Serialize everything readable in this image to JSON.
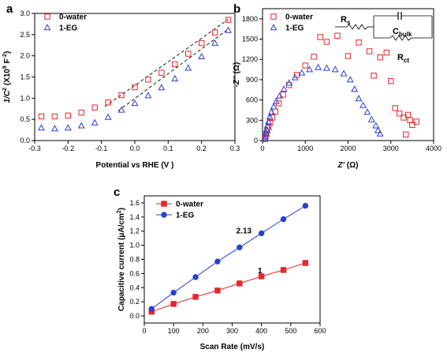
{
  "colors": {
    "red": "#e8262a",
    "blue": "#2b3fd6",
    "black": "#111111"
  },
  "chart_data": [
    {
      "panel": "a",
      "type": "scatter",
      "xlabel": "Potential vs RHE (V )",
      "ylabel_main": "1/C",
      "ylabel_sup": "2",
      "ylabel_unit": " (X10",
      "ylabel_unit_sup": "9",
      "ylabel_tail": " F",
      "ylabel_tail_sup": "-2",
      "ylabel_close": ")",
      "xlim": [
        -0.3,
        0.3
      ],
      "ylim": [
        0.0,
        3.0
      ],
      "xticks": [
        -0.3,
        -0.2,
        -0.1,
        0.0,
        0.1,
        0.2,
        0.3
      ],
      "xtick_labels": [
        "-0.3",
        "-0.2",
        "-0.1",
        "0.0",
        "0.1",
        "0.2",
        "0.3"
      ],
      "yticks": [
        0.0,
        0.5,
        1.0,
        1.5,
        2.0,
        2.5,
        3.0
      ],
      "ytick_labels": [
        "0.0",
        "0.5",
        "1.0",
        "1.5",
        "2.0",
        "2.5",
        "3.0"
      ],
      "series": [
        {
          "name": "0-water",
          "marker": "square",
          "x": [
            -0.28,
            -0.24,
            -0.2,
            -0.16,
            -0.12,
            -0.08,
            -0.04,
            0.0,
            0.04,
            0.08,
            0.12,
            0.16,
            0.2,
            0.24,
            0.28
          ],
          "y": [
            0.57,
            0.57,
            0.59,
            0.66,
            0.78,
            0.9,
            1.07,
            1.26,
            1.44,
            1.6,
            1.8,
            2.05,
            2.3,
            2.55,
            2.85
          ],
          "fit": [
            [
              -0.09,
              0.8
            ],
            [
              0.28,
              2.86
            ]
          ]
        },
        {
          "name": "1-EG",
          "marker": "triangle",
          "x": [
            -0.28,
            -0.24,
            -0.2,
            -0.16,
            -0.12,
            -0.08,
            -0.04,
            0.0,
            0.04,
            0.08,
            0.12,
            0.16,
            0.2,
            0.24,
            0.28
          ],
          "y": [
            0.3,
            0.28,
            0.3,
            0.35,
            0.42,
            0.55,
            0.72,
            0.88,
            1.06,
            1.25,
            1.46,
            1.71,
            1.98,
            2.3,
            2.6
          ],
          "fit": [
            [
              -0.05,
              0.7
            ],
            [
              0.28,
              2.63
            ]
          ]
        }
      ]
    },
    {
      "panel": "b",
      "type": "scatter",
      "xlabel_main": "Z'",
      "xlabel_unit": " (Ω)",
      "ylabel_main": "-Z''",
      "ylabel_unit": " (Ω)",
      "xlim": [
        0,
        4000
      ],
      "ylim": [
        0,
        1950
      ],
      "xticks": [
        0,
        1000,
        2000,
        3000,
        4000
      ],
      "xtick_labels": [
        "0",
        "1000",
        "2000",
        "3000",
        "4000"
      ],
      "yticks": [
        0,
        300,
        600,
        900,
        1200,
        1500,
        1800
      ],
      "ytick_labels": [
        "0",
        "300",
        "600",
        "900",
        "1200",
        "1500",
        "1800"
      ],
      "circuit": {
        "rs": "R",
        "rs_sub": "s",
        "cbulk": "C",
        "cbulk_sub": "bulk",
        "rct": "R",
        "rct_sub": "ct"
      },
      "series": [
        {
          "name": "0-water",
          "marker": "square",
          "x": [
            55,
            70,
            90,
            110,
            140,
            180,
            230,
            300,
            380,
            480,
            620,
            800,
            1000,
            1200,
            1350,
            1500,
            1750,
            2000,
            2250,
            2500,
            2600,
            2750,
            2900,
            3000,
            3100,
            3200,
            3300,
            3350,
            3400,
            3450,
            3500,
            3600
          ],
          "y": [
            30,
            60,
            100,
            150,
            200,
            260,
            340,
            430,
            550,
            680,
            820,
            970,
            1110,
            1240,
            1530,
            1460,
            1550,
            1250,
            1450,
            1320,
            960,
            1230,
            1300,
            880,
            480,
            400,
            340,
            90,
            380,
            300,
            230,
            280
          ]
        },
        {
          "name": "1-EG",
          "marker": "triangle",
          "x": [
            55,
            65,
            80,
            95,
            115,
            140,
            170,
            210,
            260,
            320,
            400,
            500,
            620,
            760,
            920,
            1100,
            1300,
            1500,
            1700,
            1900,
            2050,
            2150,
            2250,
            2350,
            2450,
            2550,
            2650,
            2700,
            2750
          ],
          "y": [
            20,
            60,
            110,
            160,
            220,
            280,
            350,
            420,
            500,
            580,
            660,
            760,
            850,
            930,
            1000,
            1050,
            1080,
            1070,
            1050,
            990,
            900,
            760,
            620,
            520,
            420,
            310,
            220,
            150,
            100
          ]
        }
      ]
    },
    {
      "panel": "c",
      "type": "line",
      "xlabel": "Scan Rate (mV/s)",
      "ylabel_main": "Capacitive current (μA/cm",
      "ylabel_sup": "2",
      "ylabel_close": ")",
      "xlim": [
        0,
        600
      ],
      "ylim": [
        -0.1,
        1.7
      ],
      "xticks": [
        0,
        100,
        200,
        300,
        400,
        500,
        600
      ],
      "xtick_labels": [
        "0",
        "100",
        "200",
        "300",
        "400",
        "500",
        "600"
      ],
      "yticks": [
        0.0,
        0.2,
        0.4,
        0.6,
        0.8,
        1.0,
        1.2,
        1.4,
        1.6
      ],
      "ytick_labels": [
        "0.0",
        "0.2",
        "0.4",
        "0.6",
        "0.8",
        "1.0",
        "1.2",
        "1.4",
        "1.6"
      ],
      "annotations": [
        {
          "text": "2.13",
          "x": 340,
          "y": 1.2
        },
        {
          "text": "1",
          "x": 395,
          "y": 0.64
        }
      ],
      "series": [
        {
          "name": "0-water",
          "marker": "square",
          "x": [
            25,
            100,
            175,
            250,
            325,
            400,
            475,
            550
          ],
          "y": [
            0.06,
            0.17,
            0.27,
            0.36,
            0.46,
            0.56,
            0.65,
            0.75
          ]
        },
        {
          "name": "1-EG",
          "marker": "circle",
          "x": [
            25,
            100,
            175,
            250,
            325,
            400,
            475,
            550
          ],
          "y": [
            0.1,
            0.33,
            0.55,
            0.77,
            0.97,
            1.17,
            1.37,
            1.56
          ]
        }
      ]
    }
  ]
}
